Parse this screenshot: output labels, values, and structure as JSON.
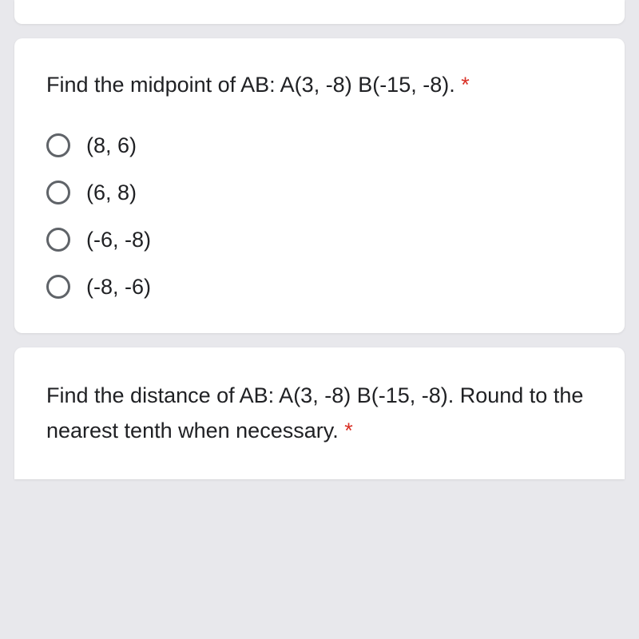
{
  "question1": {
    "text": "Find the midpoint of AB: A(3, -8) B(-15, -8). ",
    "required_marker": "*",
    "options": [
      {
        "label": "(8, 6)"
      },
      {
        "label": "(6, 8)"
      },
      {
        "label": "(-6, -8)"
      },
      {
        "label": "(-8, -6)"
      }
    ]
  },
  "question2": {
    "text": "Find the distance of AB: A(3, -8) B(-15, -8). Round to the nearest tenth when necessary. ",
    "required_marker": "*"
  },
  "styling": {
    "background_color": "#e8e8ec",
    "card_background": "#ffffff",
    "text_color": "#202124",
    "radio_border_color": "#5f6368",
    "required_color": "#d93025",
    "question_fontsize": 27,
    "option_fontsize": 27,
    "card_border_radius": 10
  }
}
